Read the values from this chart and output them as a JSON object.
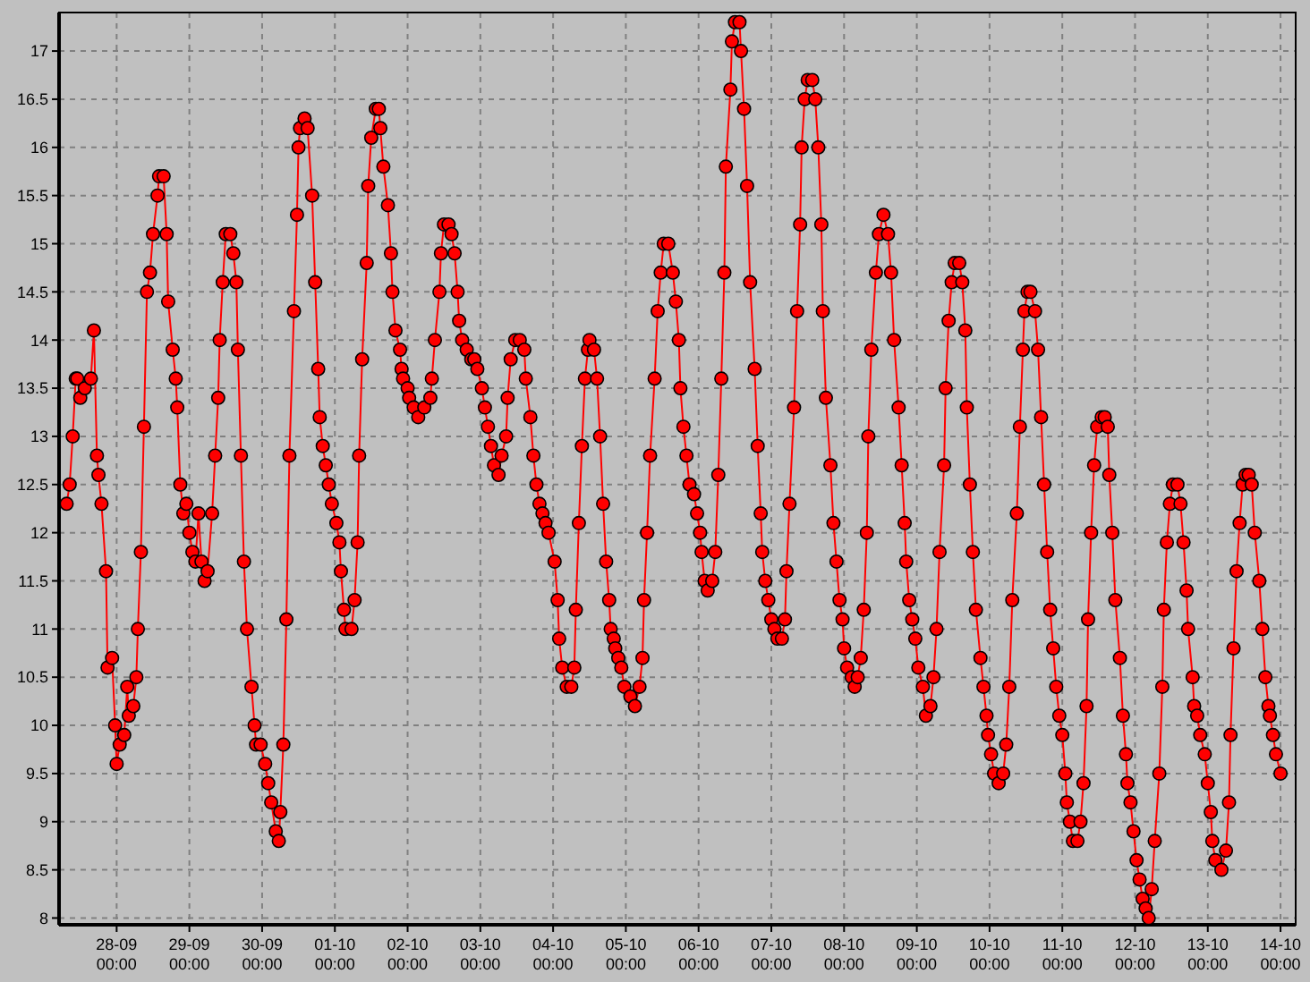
{
  "chart_data": {
    "type": "line",
    "marker": "circle",
    "line_style": "solid",
    "grid": true,
    "xlim": [
      "--09-27T05:00",
      "--10-14T05:00"
    ],
    "ylim": [
      7.93,
      17.4
    ],
    "xticks": [
      {
        "value": "--09-28T00:00",
        "label": "28-09\n00:00"
      },
      {
        "value": "--09-29T00:00",
        "label": "29-09\n00:00"
      },
      {
        "value": "--09-30T00:00",
        "label": "30-09\n00:00"
      },
      {
        "value": "--10-01T00:00",
        "label": "01-10\n00:00"
      },
      {
        "value": "--10-02T00:00",
        "label": "02-10\n00:00"
      },
      {
        "value": "--10-03T00:00",
        "label": "03-10\n00:00"
      },
      {
        "value": "--10-04T00:00",
        "label": "04-10\n00:00"
      },
      {
        "value": "--10-05T00:00",
        "label": "05-10\n00:00"
      },
      {
        "value": "--10-06T00:00",
        "label": "06-10\n00:00"
      },
      {
        "value": "--10-07T00:00",
        "label": "07-10\n00:00"
      },
      {
        "value": "--10-08T00:00",
        "label": "08-10\n00:00"
      },
      {
        "value": "--10-09T00:00",
        "label": "09-10\n00:00"
      },
      {
        "value": "--10-10T00:00",
        "label": "10-10\n00:00"
      },
      {
        "value": "--10-11T00:00",
        "label": "11-10\n00:00"
      },
      {
        "value": "--10-12T00:00",
        "label": "12-10\n00:00"
      },
      {
        "value": "--10-13T00:00",
        "label": "13-10\n00:00"
      },
      {
        "value": "--10-14T00:00",
        "label": "14-10\n00:00"
      }
    ],
    "yticks": [
      8,
      8.5,
      9,
      9.5,
      10,
      10.5,
      11,
      11.5,
      12,
      12.5,
      13,
      13.5,
      14,
      14.5,
      15,
      15.5,
      16,
      16.5,
      17
    ],
    "series": [
      {
        "color": "#ff0000",
        "x": [
          "--09-27T07:30",
          "--09-27T08:30",
          "--09-27T09:30",
          "--09-27T10:30",
          "--09-27T11:00",
          "--09-27T12:00",
          "--09-27T13:30",
          "--09-27T15:30",
          "--09-27T16:30",
          "--09-27T17:30",
          "--09-27T18:00",
          "--09-27T19:00",
          "--09-27T20:30",
          "--09-27T21:00",
          "--09-27T22:30",
          "--09-27T23:30",
          "--09-28T00:00",
          "--09-28T01:00",
          "--09-28T02:30",
          "--09-28T03:30",
          "--09-28T04:00",
          "--09-28T05:30",
          "--09-28T06:30",
          "--09-28T07:00",
          "--09-28T08:00",
          "--09-28T09:00",
          "--09-28T10:00",
          "--09-28T11:00",
          "--09-28T12:00",
          "--09-28T13:30",
          "--09-28T14:00",
          "--09-28T15:30",
          "--09-28T16:30",
          "--09-28T17:00",
          "--09-28T18:30",
          "--09-28T19:30",
          "--09-28T20:00",
          "--09-28T21:00",
          "--09-28T22:00",
          "--09-28T23:00",
          "--09-29T00:00",
          "--09-29T01:00",
          "--09-29T02:00",
          "--09-29T03:00",
          "--09-29T04:00",
          "--09-29T05:00",
          "--09-29T06:00",
          "--09-29T07:30",
          "--09-29T08:30",
          "--09-29T09:30",
          "--09-29T10:00",
          "--09-29T11:00",
          "--09-29T12:00",
          "--09-29T13:30",
          "--09-29T14:30",
          "--09-29T15:30",
          "--09-29T16:00",
          "--09-29T17:00",
          "--09-29T18:00",
          "--09-29T19:00",
          "--09-29T20:30",
          "--09-29T21:30",
          "--09-29T22:00",
          "--09-29T23:30",
          "--09-30T01:00",
          "--09-30T02:00",
          "--09-30T03:00",
          "--09-30T04:30",
          "--09-30T05:30",
          "--09-30T06:00",
          "--09-30T07:00",
          "--09-30T08:00",
          "--09-30T09:00",
          "--09-30T10:30",
          "--09-30T11:30",
          "--09-30T12:00",
          "--09-30T12:30",
          "--09-30T14:00",
          "--09-30T15:00",
          "--09-30T16:30",
          "--09-30T17:30",
          "--09-30T18:30",
          "--09-30T19:00",
          "--09-30T20:00",
          "--09-30T21:00",
          "--09-30T22:00",
          "--09-30T23:00",
          "--10-01T00:30",
          "--10-01T01:30",
          "--10-01T02:00",
          "--10-01T03:00",
          "--10-01T03:30",
          "--10-01T05:30",
          "--10-01T06:30",
          "--10-01T07:30",
          "--10-01T08:00",
          "--10-01T09:00",
          "--10-01T10:30",
          "--10-01T11:00",
          "--10-01T12:00",
          "--10-01T13:30",
          "--10-01T14:30",
          "--10-01T15:00",
          "--10-01T16:00",
          "--10-01T17:30",
          "--10-01T18:30",
          "--10-01T19:00",
          "--10-01T20:00",
          "--10-01T21:30",
          "--10-01T22:00",
          "--10-01T22:30",
          "--10-02T00:00",
          "--10-02T00:30",
          "--10-02T02:00",
          "--10-02T03:30",
          "--10-02T05:30",
          "--10-02T07:30",
          "--10-02T08:00",
          "--10-02T09:00",
          "--10-02T10:30",
          "--10-02T11:00",
          "--10-02T12:00",
          "--10-02T13:30",
          "--10-02T14:30",
          "--10-02T15:30",
          "--10-02T16:30",
          "--10-02T17:00",
          "--10-02T18:00",
          "--10-02T19:30",
          "--10-02T21:00",
          "--10-02T22:00",
          "--10-02T23:00",
          "--10-03T00:30",
          "--10-03T01:30",
          "--10-03T02:30",
          "--10-03T03:30",
          "--10-03T04:30",
          "--10-03T06:00",
          "--10-03T07:00",
          "--10-03T08:30",
          "--10-03T09:00",
          "--10-03T10:00",
          "--10-03T11:30",
          "--10-03T13:00",
          "--10-03T14:30",
          "--10-03T15:00",
          "--10-03T16:30",
          "--10-03T17:30",
          "--10-03T18:30",
          "--10-03T19:30",
          "--10-03T20:30",
          "--10-03T21:30",
          "--10-03T22:30",
          "--10-04T00:30",
          "--10-04T01:30",
          "--10-04T02:00",
          "--10-04T03:00",
          "--10-04T04:30",
          "--10-04T06:00",
          "--10-04T07:00",
          "--10-04T07:30",
          "--10-04T08:30",
          "--10-04T09:30",
          "--10-04T10:30",
          "--10-04T11:30",
          "--10-04T12:00",
          "--10-04T13:30",
          "--10-04T14:30",
          "--10-04T15:30",
          "--10-04T16:30",
          "--10-04T17:30",
          "--10-04T18:30",
          "--10-04T19:00",
          "--10-04T20:00",
          "--10-04T20:30",
          "--10-04T21:30",
          "--10-04T22:30",
          "--10-04T23:30",
          "--10-05T01:30",
          "--10-05T03:00",
          "--10-05T04:30",
          "--10-05T05:30",
          "--10-05T06:00",
          "--10-05T07:00",
          "--10-05T08:00",
          "--10-05T09:30",
          "--10-05T10:30",
          "--10-05T11:30",
          "--10-05T12:30",
          "--10-05T14:00",
          "--10-05T15:30",
          "--10-05T16:30",
          "--10-05T17:30",
          "--10-05T18:00",
          "--10-05T19:00",
          "--10-05T20:00",
          "--10-05T21:00",
          "--10-05T22:30",
          "--10-05T23:30",
          "--10-06T00:30",
          "--10-06T01:00",
          "--10-06T02:00",
          "--10-06T03:00",
          "--10-06T04:30",
          "--10-06T05:30",
          "--10-06T06:30",
          "--10-06T07:30",
          "--10-06T08:30",
          "--10-06T09:00",
          "--10-06T10:30",
          "--10-06T11:00",
          "--10-06T12:00",
          "--10-06T13:30",
          "--10-06T14:00",
          "--10-06T15:00",
          "--10-06T16:00",
          "--10-06T17:00",
          "--10-06T18:30",
          "--10-06T19:30",
          "--10-06T20:30",
          "--10-06T21:00",
          "--10-06T22:00",
          "--10-06T23:00",
          "--10-07T00:00",
          "--10-07T01:00",
          "--10-07T02:00",
          "--10-07T03:30",
          "--10-07T04:30",
          "--10-07T05:00",
          "--10-07T06:00",
          "--10-07T07:30",
          "--10-07T08:30",
          "--10-07T09:30",
          "--10-07T10:00",
          "--10-07T11:00",
          "--10-07T12:00",
          "--10-07T13:30",
          "--10-07T14:30",
          "--10-07T15:30",
          "--10-07T16:30",
          "--10-07T17:00",
          "--10-07T18:00",
          "--10-07T19:30",
          "--10-07T20:30",
          "--10-07T21:30",
          "--10-07T22:30",
          "--10-07T23:30",
          "--10-08T00:00",
          "--10-08T01:00",
          "--10-08T02:30",
          "--10-08T03:30",
          "--10-08T04:30",
          "--10-08T05:30",
          "--10-08T06:30",
          "--10-08T07:30",
          "--10-08T08:00",
          "--10-08T09:00",
          "--10-08T10:30",
          "--10-08T11:30",
          "--10-08T13:00",
          "--10-08T14:30",
          "--10-08T15:30",
          "--10-08T16:30",
          "--10-08T18:00",
          "--10-08T19:00",
          "--10-08T20:00",
          "--10-08T20:30",
          "--10-08T21:30",
          "--10-08T22:30",
          "--10-08T23:30",
          "--10-09T00:30",
          "--10-09T02:00",
          "--10-09T03:00",
          "--10-09T04:30",
          "--10-09T05:30",
          "--10-09T06:30",
          "--10-09T07:30",
          "--10-09T09:00",
          "--10-09T09:30",
          "--10-09T10:30",
          "--10-09T11:30",
          "--10-09T12:30",
          "--10-09T14:00",
          "--10-09T15:00",
          "--10-09T16:00",
          "--10-09T16:30",
          "--10-09T17:30",
          "--10-09T18:30",
          "--10-09T19:30",
          "--10-09T21:00",
          "--10-09T22:00",
          "--10-09T23:00",
          "--10-09T23:30",
          "--10-10T00:30",
          "--10-10T01:30",
          "--10-10T03:00",
          "--10-10T04:30",
          "--10-10T05:30",
          "--10-10T06:30",
          "--10-10T07:30",
          "--10-10T09:00",
          "--10-10T10:00",
          "--10-10T11:00",
          "--10-10T11:30",
          "--10-10T12:30",
          "--10-10T13:30",
          "--10-10T15:00",
          "--10-10T16:00",
          "--10-10T17:00",
          "--10-10T18:00",
          "--10-10T19:00",
          "--10-10T20:00",
          "--10-10T21:00",
          "--10-10T22:00",
          "--10-10T23:00",
          "--10-11T00:00",
          "--10-11T01:00",
          "--10-11T01:30",
          "--10-11T02:30",
          "--10-11T03:30",
          "--10-11T05:00",
          "--10-11T06:00",
          "--10-11T07:00",
          "--10-11T08:00",
          "--10-11T08:30",
          "--10-11T09:30",
          "--10-11T10:30",
          "--10-11T11:30",
          "--10-11T13:00",
          "--10-11T14:00",
          "--10-11T15:00",
          "--10-11T15:30",
          "--10-11T16:30",
          "--10-11T17:30",
          "--10-11T19:00",
          "--10-11T20:00",
          "--10-11T21:00",
          "--10-11T21:30",
          "--10-11T22:30",
          "--10-11T23:30",
          "--10-12T00:30",
          "--10-12T01:30",
          "--10-12T02:30",
          "--10-12T03:30",
          "--10-12T04:30",
          "--10-12T05:30",
          "--10-12T06:30",
          "--10-12T08:00",
          "--10-12T09:00",
          "--10-12T09:30",
          "--10-12T10:30",
          "--10-12T11:30",
          "--10-12T12:30",
          "--10-12T14:00",
          "--10-12T15:00",
          "--10-12T16:00",
          "--10-12T17:00",
          "--10-12T17:30",
          "--10-12T19:00",
          "--10-12T19:30",
          "--10-12T20:30",
          "--10-12T21:30",
          "--10-12T23:00",
          "--10-13T00:00",
          "--10-13T01:00",
          "--10-13T01:30",
          "--10-13T02:30",
          "--10-13T04:30",
          "--10-13T06:00",
          "--10-13T07:00",
          "--10-13T07:30",
          "--10-13T08:30",
          "--10-13T09:30",
          "--10-13T10:30",
          "--10-13T11:30",
          "--10-13T12:30",
          "--10-13T13:30",
          "--10-13T14:30",
          "--10-13T15:30",
          "--10-13T17:00",
          "--10-13T18:00",
          "--10-13T19:00",
          "--10-13T20:00",
          "--10-13T20:30",
          "--10-13T21:30",
          "--10-13T22:30",
          "--10-14T00:00"
        ],
        "values": [
          12.3,
          12.5,
          13.0,
          13.6,
          13.6,
          13.4,
          13.5,
          13.6,
          14.1,
          12.8,
          12.6,
          12.3,
          11.6,
          10.6,
          10.7,
          10.0,
          9.6,
          9.8,
          9.9,
          10.4,
          10.1,
          10.2,
          10.5,
          11.0,
          11.8,
          13.1,
          14.5,
          14.7,
          15.1,
          15.5,
          15.7,
          15.7,
          15.1,
          14.4,
          13.9,
          13.6,
          13.3,
          12.5,
          12.2,
          12.3,
          12.0,
          11.8,
          11.7,
          12.2,
          11.7,
          11.5,
          11.6,
          12.2,
          12.8,
          13.4,
          14.0,
          14.6,
          15.1,
          15.1,
          14.9,
          14.6,
          13.9,
          12.8,
          11.7,
          11.0,
          10.4,
          10.0,
          9.8,
          9.8,
          9.6,
          9.4,
          9.2,
          8.9,
          8.8,
          9.1,
          9.8,
          11.1,
          12.8,
          14.3,
          15.3,
          16.0,
          16.2,
          16.3,
          16.2,
          15.5,
          14.6,
          13.7,
          13.2,
          12.9,
          12.7,
          12.5,
          12.3,
          12.1,
          11.9,
          11.6,
          11.2,
          11.0,
          11.0,
          11.3,
          11.9,
          12.8,
          13.8,
          14.8,
          15.6,
          16.1,
          16.4,
          16.4,
          16.2,
          15.8,
          15.4,
          14.9,
          14.5,
          14.1,
          13.9,
          13.7,
          13.6,
          13.5,
          13.4,
          13.3,
          13.2,
          13.3,
          13.4,
          13.6,
          14.0,
          14.5,
          14.9,
          15.2,
          15.2,
          15.1,
          14.9,
          14.5,
          14.2,
          14.0,
          13.9,
          13.8,
          13.8,
          13.7,
          13.5,
          13.3,
          13.1,
          12.9,
          12.7,
          12.6,
          12.8,
          13.0,
          13.4,
          13.8,
          14.0,
          14.0,
          13.9,
          13.6,
          13.2,
          12.8,
          12.5,
          12.3,
          12.2,
          12.1,
          12.0,
          11.7,
          11.3,
          10.9,
          10.6,
          10.4,
          10.4,
          10.6,
          11.2,
          12.1,
          12.9,
          13.6,
          13.9,
          14.0,
          13.9,
          13.6,
          13.0,
          12.3,
          11.7,
          11.3,
          11.0,
          10.9,
          10.8,
          10.7,
          10.6,
          10.4,
          10.3,
          10.2,
          10.4,
          10.7,
          11.3,
          12.0,
          12.8,
          13.6,
          14.3,
          14.7,
          15.0,
          15.0,
          14.7,
          14.4,
          14.0,
          13.5,
          13.1,
          12.8,
          12.5,
          12.4,
          12.2,
          12.0,
          11.8,
          11.5,
          11.4,
          11.5,
          11.8,
          12.6,
          13.6,
          14.7,
          15.8,
          16.6,
          17.1,
          17.3,
          17.3,
          17.0,
          16.4,
          15.6,
          14.6,
          13.7,
          12.9,
          12.2,
          11.8,
          11.5,
          11.3,
          11.1,
          11.0,
          10.9,
          10.9,
          11.1,
          11.6,
          12.3,
          13.3,
          14.3,
          15.2,
          16.0,
          16.5,
          16.7,
          16.7,
          16.5,
          16.0,
          15.2,
          14.3,
          13.4,
          12.7,
          12.1,
          11.7,
          11.3,
          11.1,
          10.8,
          10.6,
          10.5,
          10.4,
          10.5,
          10.7,
          11.2,
          12.0,
          13.0,
          13.9,
          14.7,
          15.1,
          15.3,
          15.1,
          14.7,
          14.0,
          13.3,
          12.7,
          12.1,
          11.7,
          11.3,
          11.1,
          10.9,
          10.6,
          10.4,
          10.1,
          10.2,
          10.5,
          11.0,
          11.8,
          12.7,
          13.5,
          14.2,
          14.6,
          14.8,
          14.8,
          14.6,
          14.1,
          13.3,
          12.5,
          11.8,
          11.2,
          10.7,
          10.4,
          10.1,
          9.9,
          9.7,
          9.5,
          9.4,
          9.5,
          9.8,
          10.4,
          11.3,
          12.2,
          13.1,
          13.9,
          14.3,
          14.5,
          14.5,
          14.3,
          13.9,
          13.2,
          12.5,
          11.8,
          11.2,
          10.8,
          10.4,
          10.1,
          9.9,
          9.5,
          9.2,
          9.0,
          8.8,
          8.8,
          9.0,
          9.4,
          10.2,
          11.1,
          12.0,
          12.7,
          13.1,
          13.2,
          13.2,
          13.1,
          12.6,
          12.0,
          11.3,
          10.7,
          10.1,
          9.7,
          9.4,
          9.2,
          8.9,
          8.6,
          8.4,
          8.2,
          8.1,
          8.0,
          8.3,
          8.8,
          9.5,
          10.4,
          11.2,
          11.9,
          12.3,
          12.5,
          12.5,
          12.3,
          11.9,
          11.4,
          11.0,
          10.5,
          10.2,
          10.1,
          9.9,
          9.7,
          9.4,
          9.1,
          8.8,
          8.6,
          8.5,
          8.7,
          9.2,
          9.9,
          10.8,
          11.6,
          12.1,
          12.5,
          12.6,
          12.6,
          12.5,
          12.0,
          11.5,
          11.0,
          10.5,
          10.2,
          10.1,
          9.9,
          9.7,
          9.5
        ]
      }
    ]
  }
}
